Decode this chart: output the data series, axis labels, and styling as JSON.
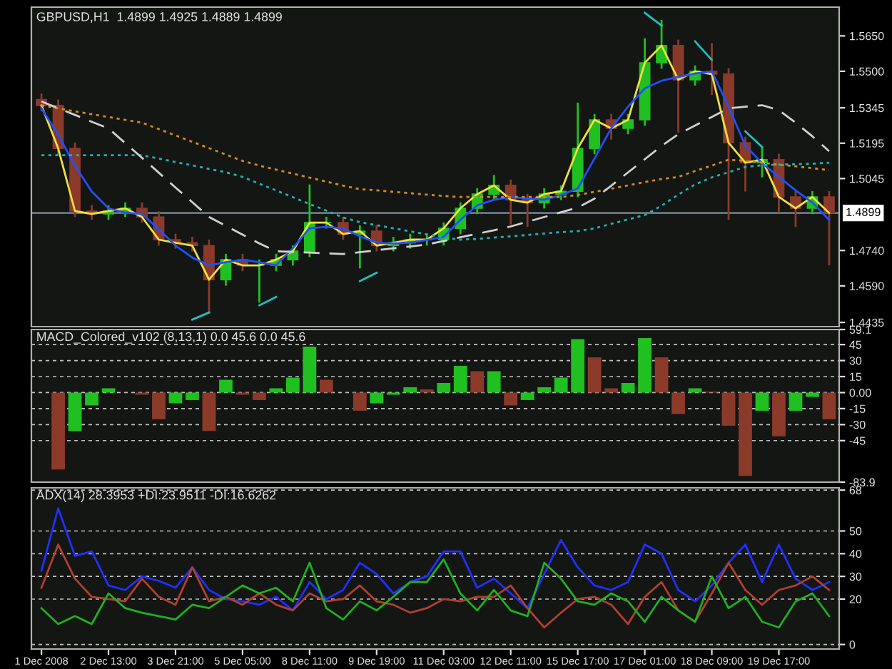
{
  "chart_data": [
    {
      "type": "candlestick",
      "title": "GBPUSD,H1  1.4899 1.4925 1.4889 1.4899",
      "tick_labels": "y",
      "categories": [
        null,
        null,
        null,
        null,
        null,
        null,
        null,
        null,
        null,
        null,
        null,
        null,
        null,
        null,
        null,
        null,
        null,
        null,
        null,
        null,
        null,
        null,
        null,
        null,
        null,
        null,
        null,
        null,
        null,
        null,
        null,
        null,
        null,
        null,
        null,
        null,
        null,
        null,
        null,
        null,
        null,
        null,
        null,
        null,
        null,
        null,
        null,
        null
      ],
      "ohlc": [
        [
          1.538,
          1.5405,
          1.533,
          1.5355
        ],
        [
          1.5355,
          1.538,
          1.5148,
          1.5173
        ],
        [
          1.5173,
          1.5198,
          1.4882,
          1.4907
        ],
        [
          1.4907,
          1.4932,
          1.487,
          1.4895
        ],
        [
          1.4895,
          1.4932,
          1.487,
          1.4907
        ],
        [
          1.4907,
          1.4944,
          1.4882,
          1.4919
        ],
        [
          1.4919,
          1.4944,
          1.4857,
          1.4882
        ],
        [
          1.4882,
          1.4907,
          1.4761,
          1.4786
        ],
        [
          1.4786,
          1.4811,
          1.4748,
          1.4773
        ],
        [
          1.4773,
          1.4798,
          1.4736,
          1.4761
        ],
        [
          1.4761,
          1.4786,
          1.4476,
          1.4616
        ],
        [
          1.4616,
          1.4726,
          1.4591,
          1.4701
        ],
        [
          1.4701,
          1.4726,
          1.4652,
          1.4677
        ],
        [
          1.4677,
          1.4702,
          1.4519,
          1.4677
        ],
        [
          1.4677,
          1.4726,
          1.4652,
          1.4701
        ],
        [
          1.4701,
          1.4762,
          1.4676,
          1.4737
        ],
        [
          1.4737,
          1.502,
          1.4712,
          1.4858
        ],
        [
          1.4858,
          1.4883,
          1.4833,
          1.4858
        ],
        [
          1.4858,
          1.4883,
          1.4785,
          1.481
        ],
        [
          1.481,
          1.4847,
          1.4664,
          1.4822
        ],
        [
          1.4822,
          1.4847,
          1.4736,
          1.4761
        ],
        [
          1.4761,
          1.4798,
          1.4736,
          1.4773
        ],
        [
          1.4773,
          1.4811,
          1.4748,
          1.4786
        ],
        [
          1.4786,
          1.4811,
          1.4761,
          1.4786
        ],
        [
          1.4786,
          1.4859,
          1.4761,
          1.4834
        ],
        [
          1.4834,
          1.4944,
          1.4809,
          1.4919
        ],
        [
          1.4919,
          1.5004,
          1.4894,
          1.4979
        ],
        [
          1.4979,
          1.506,
          1.4954,
          1.5016
        ],
        [
          1.5016,
          1.5041,
          1.485,
          1.4955
        ],
        [
          1.4955,
          1.498,
          1.484,
          1.4943
        ],
        [
          1.4943,
          1.5004,
          1.4918,
          1.4979
        ],
        [
          1.4979,
          1.5016,
          1.4954,
          1.4991
        ],
        [
          1.4991,
          1.5367,
          1.4966,
          1.5173
        ],
        [
          1.5173,
          1.5319,
          1.5148,
          1.5294
        ],
        [
          1.5294,
          1.5319,
          1.521,
          1.5258
        ],
        [
          1.5258,
          1.5319,
          1.5233,
          1.5294
        ],
        [
          1.5294,
          1.564,
          1.5269,
          1.5536
        ],
        [
          1.5536,
          1.5718,
          1.5511,
          1.5609
        ],
        [
          1.5609,
          1.5634,
          1.524,
          1.5464
        ],
        [
          1.5464,
          1.5525,
          1.5439,
          1.55
        ],
        [
          1.55,
          1.562,
          1.54,
          1.5488
        ],
        [
          1.5488,
          1.5513,
          1.487,
          1.5197
        ],
        [
          1.5197,
          1.5222,
          1.499,
          1.5112
        ],
        [
          1.5112,
          1.518,
          1.505,
          1.5125
        ],
        [
          1.5125,
          1.515,
          1.49,
          1.4967
        ],
        [
          1.4967,
          1.4992,
          1.484,
          1.4919
        ],
        [
          1.4919,
          1.4992,
          1.4894,
          1.4967
        ],
        [
          1.4967,
          1.4992,
          1.4677,
          1.4899
        ]
      ],
      "colors": [
        "#8b3a2a",
        "#8b3a2a",
        "#8b3a2a",
        "#8b3a2a",
        "#20c020",
        "#20c020",
        "#8b3a2a",
        "#8b3a2a",
        "#8b3a2a",
        "#8b3a2a",
        "#8b3a2a",
        "#20c020",
        "#8b3a2a",
        "#20c020",
        "#20c020",
        "#20c020",
        "#20c020",
        "#20c020",
        "#8b3a2a",
        "#20c020",
        "#8b3a2a",
        "#20c020",
        "#20c020",
        "#20c020",
        "#20c020",
        "#20c020",
        "#20c020",
        "#20c020",
        "#8b3a2a",
        "#8b3a2a",
        "#20c020",
        "#20c020",
        "#20c020",
        "#20c020",
        "#8b3a2a",
        "#20c020",
        "#20c020",
        "#20c020",
        "#8b3a2a",
        "#20c020",
        "#8b3a2a",
        "#8b3a2a",
        "#8b3a2a",
        "#20c020",
        "#8b3a2a",
        "#8b3a2a",
        "#20c020",
        "#8b3a2a"
      ],
      "series": [
        {
          "type": "line",
          "color": "#f0e040",
          "line_style": "solid",
          "values": [
            1.5355,
            1.5173,
            1.4907,
            1.4895,
            1.4907,
            1.4919,
            1.4882,
            1.4786,
            1.4773,
            1.4761,
            1.4616,
            1.4701,
            1.4677,
            1.4677,
            1.4701,
            1.4737,
            1.4858,
            1.4858,
            1.481,
            1.4822,
            1.4761,
            1.4773,
            1.4786,
            1.4786,
            1.4834,
            1.4919,
            1.4979,
            1.5016,
            1.4955,
            1.4943,
            1.4979,
            1.4991,
            1.5173,
            1.5294,
            1.5258,
            1.5294,
            1.5536,
            1.5609,
            1.5464,
            1.55,
            1.5488,
            1.5197,
            1.5112,
            1.5125,
            1.4967,
            1.4919,
            1.4967,
            1.4899
          ]
        },
        {
          "type": "line",
          "color": "#2050ff",
          "line_style": "solid",
          "values": [
            1.5343,
            1.523,
            1.51,
            1.499,
            1.4919,
            1.49,
            1.4895,
            1.483,
            1.4761,
            1.471,
            1.4677,
            1.469,
            1.4701,
            1.469,
            1.4677,
            1.475,
            1.4834,
            1.484,
            1.4834,
            1.48,
            1.4773,
            1.477,
            1.4773,
            1.4785,
            1.4798,
            1.487,
            1.4931,
            1.4955,
            1.4967,
            1.496,
            1.4955,
            1.4975,
            1.5003,
            1.513,
            1.5258,
            1.535,
            1.5427,
            1.546,
            1.5476,
            1.549,
            1.55,
            1.535,
            1.5185,
            1.511,
            1.5052,
            1.4995,
            1.4943,
            1.487
          ]
        },
        {
          "type": "line",
          "color": "#d08a20",
          "line_style": "dotted",
          "values": [
            1.5355,
            1.5343,
            1.533,
            1.5318,
            1.5306,
            1.5294,
            1.5282,
            1.5255,
            1.5228,
            1.5201,
            1.5174,
            1.5147,
            1.512,
            1.51,
            1.5083,
            1.5066,
            1.5049,
            1.5032,
            1.5015,
            1.5,
            1.4995,
            1.4989,
            1.4983,
            1.4977,
            1.4971,
            1.4967,
            1.4967,
            1.4967,
            1.4967,
            1.4967,
            1.4967,
            1.4967,
            1.4975,
            1.4989,
            1.5002,
            1.5016,
            1.503,
            1.5043,
            1.5052,
            1.5077,
            1.51,
            1.5125,
            1.512,
            1.5112,
            1.5104,
            1.5097,
            1.5089,
            1.5081
          ]
        },
        {
          "type": "line",
          "color": "#20b0b0",
          "line_style": "dotted",
          "values": [
            1.5144,
            1.5144,
            1.5144,
            1.5144,
            1.5144,
            1.5144,
            1.5144,
            1.513,
            1.5115,
            1.5101,
            1.5086,
            1.5072,
            1.5052,
            1.5023,
            1.4995,
            1.4966,
            1.4937,
            1.4909,
            1.488,
            1.486,
            1.4847,
            1.4834,
            1.4821,
            1.4808,
            1.4795,
            1.4786,
            1.4789,
            1.4795,
            1.48,
            1.4806,
            1.4812,
            1.4818,
            1.4822,
            1.4834,
            1.4853,
            1.4872,
            1.489,
            1.493,
            1.4977,
            1.502,
            1.505,
            1.5072,
            1.5094,
            1.5102,
            1.5104,
            1.5106,
            1.5108,
            1.5112
          ]
        },
        {
          "type": "line",
          "color": "#d0d0d0",
          "line_style": "dashed",
          "values": [
            1.5372,
            1.5343,
            1.5315,
            1.5286,
            1.5258,
            1.5195,
            1.5133,
            1.507,
            1.5007,
            1.4945,
            1.4882,
            1.4845,
            1.4807,
            1.477,
            1.4737,
            1.4734,
            1.4731,
            1.4728,
            1.4725,
            1.4733,
            1.4741,
            1.4749,
            1.4757,
            1.4765,
            1.478,
            1.4796,
            1.4811,
            1.4826,
            1.4842,
            1.4862,
            1.4882,
            1.4902,
            1.4922,
            1.496,
            1.5015,
            1.5071,
            1.5127,
            1.5183,
            1.5233,
            1.527,
            1.5306,
            1.5343,
            1.535,
            1.5356,
            1.5335,
            1.5282,
            1.5224,
            1.5161
          ]
        },
        {
          "type": "line",
          "color": "#20c0c0",
          "line_style": "solid",
          "values": [
            null,
            null,
            null,
            null,
            null,
            null,
            null,
            null,
            null,
            1.4447,
            1.4477,
            null,
            null,
            null,
            null,
            null,
            null,
            null,
            null,
            null,
            null,
            null,
            null,
            null,
            null,
            null,
            null,
            null,
            null,
            null,
            null,
            null,
            null,
            null,
            null,
            null,
            null,
            null,
            null,
            null,
            null,
            null,
            null,
            null,
            null,
            null,
            null,
            null
          ]
        },
        {
          "type": "line",
          "color": "#20c0c0",
          "line_style": "solid",
          "values": [
            null,
            null,
            null,
            null,
            null,
            null,
            null,
            null,
            null,
            null,
            null,
            null,
            null,
            1.4507,
            1.4543,
            null,
            null,
            null,
            null,
            null,
            null,
            null,
            null,
            null,
            null,
            null,
            null,
            null,
            null,
            null,
            null,
            null,
            null,
            null,
            null,
            null,
            null,
            null,
            null,
            null,
            null,
            null,
            null,
            null,
            null,
            null,
            null,
            null
          ]
        },
        {
          "type": "line",
          "color": "#20c0c0",
          "line_style": "solid",
          "values": [
            null,
            null,
            null,
            null,
            null,
            null,
            null,
            null,
            null,
            null,
            null,
            null,
            null,
            null,
            null,
            null,
            null,
            null,
            null,
            1.461,
            1.4646,
            null,
            null,
            null,
            null,
            null,
            null,
            null,
            null,
            null,
            null,
            null,
            null,
            null,
            null,
            null,
            null,
            null,
            null,
            null,
            null,
            null,
            null,
            null,
            null,
            null,
            null,
            null
          ]
        },
        {
          "type": "line",
          "color": "#20c0c0",
          "line_style": "solid",
          "values": [
            null,
            null,
            null,
            null,
            null,
            null,
            null,
            null,
            null,
            null,
            null,
            null,
            null,
            null,
            null,
            null,
            null,
            null,
            null,
            null,
            null,
            null,
            null,
            null,
            null,
            null,
            null,
            null,
            null,
            null,
            null,
            null,
            null,
            null,
            null,
            null,
            1.5748,
            1.5694,
            null,
            null,
            null,
            null,
            null,
            null,
            null,
            null,
            null,
            null
          ]
        },
        {
          "type": "line",
          "color": "#20c0c0",
          "line_style": "solid",
          "values": [
            null,
            null,
            null,
            null,
            null,
            null,
            null,
            null,
            null,
            null,
            null,
            null,
            null,
            null,
            null,
            null,
            null,
            null,
            null,
            null,
            null,
            null,
            null,
            null,
            null,
            null,
            null,
            null,
            null,
            null,
            null,
            null,
            null,
            null,
            null,
            null,
            null,
            null,
            null,
            1.5627,
            1.5548,
            null,
            null,
            null,
            null,
            null,
            null,
            null
          ]
        },
        {
          "type": "line",
          "color": "#20c0c0",
          "line_style": "solid",
          "values": [
            null,
            null,
            null,
            null,
            null,
            null,
            null,
            null,
            null,
            null,
            null,
            null,
            null,
            null,
            null,
            null,
            null,
            null,
            null,
            null,
            null,
            null,
            null,
            null,
            null,
            null,
            null,
            null,
            null,
            null,
            null,
            null,
            null,
            null,
            null,
            null,
            null,
            null,
            null,
            null,
            null,
            null,
            1.5245,
            1.5179,
            null,
            null,
            null,
            null
          ]
        }
      ],
      "ref_lines": [
        {
          "axis": "y",
          "value": 1.4899,
          "label": "1.4899",
          "color": "#8090a0"
        }
      ],
      "ylim": [
        1.4417,
        1.5772
      ],
      "yticks": [
        {
          "value": 1.4435,
          "label": "1.4435"
        },
        {
          "value": 1.459,
          "label": "1.4590"
        },
        {
          "value": 1.474,
          "label": "1.4740"
        },
        {
          "value": 1.5045,
          "label": "1.5045"
        },
        {
          "value": 1.5195,
          "label": "1.5195"
        },
        {
          "value": 1.5345,
          "label": "1.5345"
        },
        {
          "value": 1.55,
          "label": "1.5500"
        },
        {
          "value": 1.565,
          "label": "1.5650"
        }
      ]
    },
    {
      "type": "bar",
      "title": "MACD_Colored_v102 (8,13,1) 0.0 45.6 0.0 45.6",
      "tick_labels": "y",
      "grid": "y",
      "categories": [
        null,
        null,
        null,
        null,
        null,
        null,
        null,
        null,
        null,
        null,
        null,
        null,
        null,
        null,
        null,
        null,
        null,
        null,
        null,
        null,
        null,
        null,
        null,
        null,
        null,
        null,
        null,
        null,
        null,
        null,
        null,
        null,
        null,
        null,
        null,
        null,
        null,
        null,
        null,
        null,
        null,
        null,
        null,
        null,
        null,
        null,
        null,
        null
      ],
      "values": [
        0,
        -72,
        -36,
        -12,
        4,
        0,
        -2,
        -25,
        -10,
        -7,
        -36,
        12,
        -2,
        -7,
        4,
        14,
        43,
        12,
        0,
        -17,
        -10,
        -2,
        5,
        3,
        9,
        25,
        20,
        20,
        -12,
        -7,
        5,
        14,
        50,
        33,
        4,
        9,
        51,
        33,
        -20,
        4,
        1,
        -31,
        -78,
        -17,
        -41,
        -17,
        -4,
        -25
      ],
      "colors": [
        "#8b3a2a",
        "#8b3a2a",
        "#20c020",
        "#20c020",
        "#20c020",
        "#8b3a2a",
        "#8b3a2a",
        "#8b3a2a",
        "#20c020",
        "#20c020",
        "#8b3a2a",
        "#20c020",
        "#8b3a2a",
        "#8b3a2a",
        "#20c020",
        "#20c020",
        "#20c020",
        "#8b3a2a",
        "#8b3a2a",
        "#8b3a2a",
        "#20c020",
        "#20c020",
        "#20c020",
        "#8b3a2a",
        "#20c020",
        "#20c020",
        "#8b3a2a",
        "#20c020",
        "#8b3a2a",
        "#20c020",
        "#20c020",
        "#20c020",
        "#20c020",
        "#8b3a2a",
        "#8b3a2a",
        "#20c020",
        "#20c020",
        "#8b3a2a",
        "#8b3a2a",
        "#20c020",
        "#8b3a2a",
        "#8b3a2a",
        "#8b3a2a",
        "#20c020",
        "#8b3a2a",
        "#20c020",
        "#20c020",
        "#8b3a2a"
      ],
      "ylim": [
        -83.9,
        59.1
      ],
      "yticks": [
        -83.9,
        -45,
        -30,
        -15,
        {
          "value": 0,
          "label": "0.00"
        },
        15,
        30,
        45,
        59.1
      ]
    },
    {
      "type": "line",
      "title": "ADX(14) 28.3953 +DI:23.9511 -DI:16.6262",
      "grid": "y",
      "categories": [
        "1 Dec 2008",
        null,
        null,
        null,
        "2 Dec 13:00",
        null,
        null,
        null,
        "3 Dec 21:00",
        null,
        null,
        null,
        "5 Dec 05:00",
        null,
        null,
        null,
        "8 Dec 11:00",
        null,
        null,
        null,
        "9 Dec 19:00",
        null,
        null,
        null,
        "11 Dec 03:00",
        null,
        null,
        null,
        "12 Dec 11:00",
        null,
        null,
        null,
        "15 Dec 17:00",
        null,
        null,
        null,
        "17 Dec 01:00",
        null,
        null,
        null,
        "18 Dec 09:00",
        null,
        null,
        null,
        "19 Dec 17:00",
        null,
        null,
        null
      ],
      "series": [
        {
          "color": "#2030ff",
          "values": [
            32.5,
            60,
            39,
            41,
            26,
            24,
            30,
            28,
            25,
            34,
            24,
            20,
            19,
            17.5,
            21,
            15,
            27.5,
            20,
            24,
            36,
            31,
            22.5,
            27.5,
            30,
            41,
            41,
            25,
            29,
            22.5,
            16,
            31,
            46,
            34,
            26,
            24,
            27.5,
            44,
            40,
            24,
            19,
            26,
            36,
            44,
            27.5,
            44,
            29,
            24,
            27.5
          ]
        },
        {
          "color": "#b04030",
          "values": [
            25,
            44,
            29,
            21,
            20,
            19,
            29,
            21,
            17.5,
            34,
            19,
            21,
            17.5,
            22.5,
            17.5,
            15,
            22.5,
            19,
            20,
            26,
            19,
            17.5,
            14,
            16,
            20,
            19,
            21,
            21,
            26,
            16,
            7.5,
            14,
            20,
            21,
            17.5,
            9,
            21,
            27.5,
            15,
            10,
            22.5,
            36,
            24,
            17.5,
            24,
            26,
            30,
            24
          ]
        },
        {
          "color": "#20b020",
          "values": [
            16,
            9,
            12.5,
            9,
            22.5,
            16,
            14,
            12.5,
            11,
            17.5,
            16,
            21,
            26,
            22.5,
            25,
            19,
            36,
            16,
            11,
            19,
            15,
            21,
            27.5,
            27.5,
            37.5,
            22.5,
            15,
            24,
            15,
            12.5,
            36,
            29,
            19,
            17.5,
            22.5,
            19,
            10,
            21,
            15,
            10,
            30,
            16,
            21,
            10,
            7.5,
            19,
            22.5,
            12.5
          ]
        }
      ],
      "ylim": [
        -2,
        69
      ],
      "yticks": [
        0,
        20,
        30,
        40,
        50,
        68
      ]
    }
  ]
}
